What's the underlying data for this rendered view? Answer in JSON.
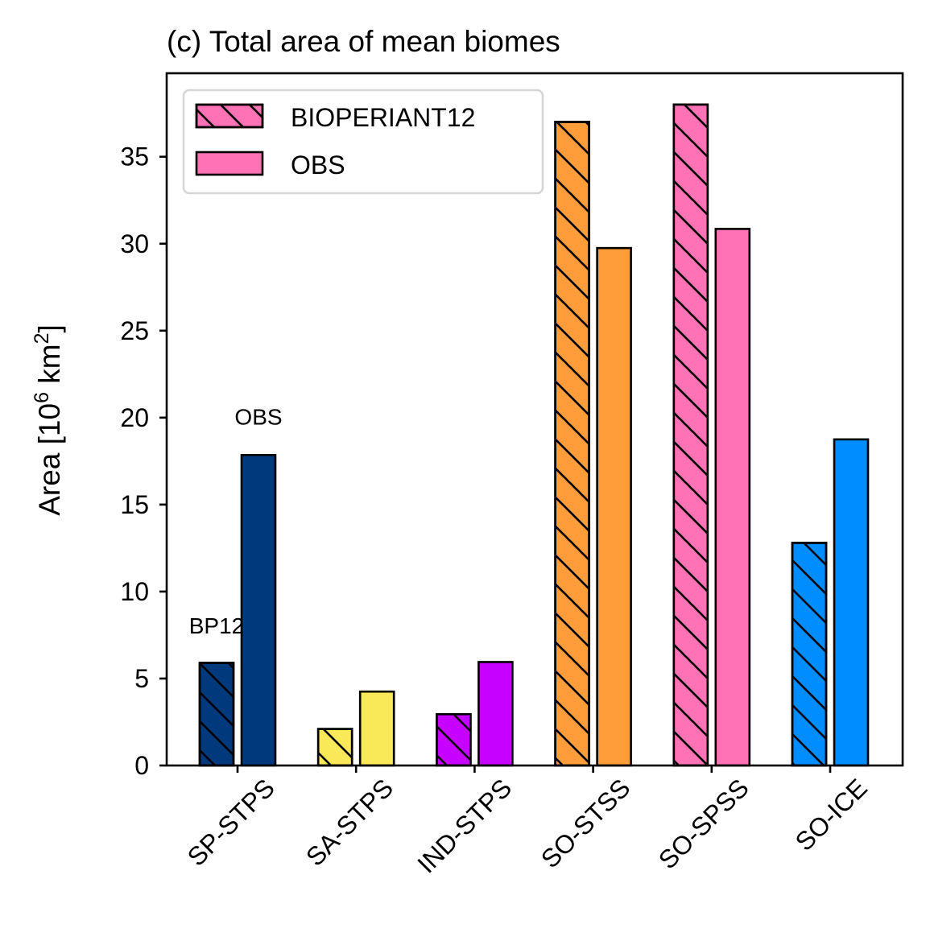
{
  "chart_data": {
    "type": "bar",
    "title": "(c) Total area of mean biomes",
    "ylabel_base": "Area [10",
    "ylabel_exp1": "6",
    "ylabel_mid": " km",
    "ylabel_exp2": "2",
    "ylabel_end": "]",
    "xlabel": "",
    "ylim": [
      0,
      39.8
    ],
    "yticks": [
      0,
      5,
      10,
      15,
      20,
      25,
      30,
      35
    ],
    "categories": [
      "SP-STPS",
      "SA-STPS",
      "IND-STPS",
      "SO-STSS",
      "SO-SPSS",
      "SO-ICE"
    ],
    "colors": [
      "#003a7d",
      "#f9e858",
      "#c701ff",
      "#ff9d3a",
      "#ff73b6",
      "#008dff"
    ],
    "series": [
      {
        "name": "BIOPERIANT12",
        "hatch": true,
        "values": [
          5.9,
          2.1,
          2.95,
          37.0,
          38.0,
          12.8
        ]
      },
      {
        "name": "OBS",
        "hatch": false,
        "values": [
          17.85,
          4.25,
          5.95,
          29.75,
          30.85,
          18.75
        ]
      }
    ],
    "legend": {
      "placement": "top-left",
      "color": "#ff73b6"
    },
    "annotations": [
      {
        "text": "BP12",
        "category": 0,
        "series": 0,
        "y": 7.6
      },
      {
        "text": "OBS",
        "category": 0,
        "series": 1,
        "y": 19.6
      }
    ],
    "grid": false
  }
}
